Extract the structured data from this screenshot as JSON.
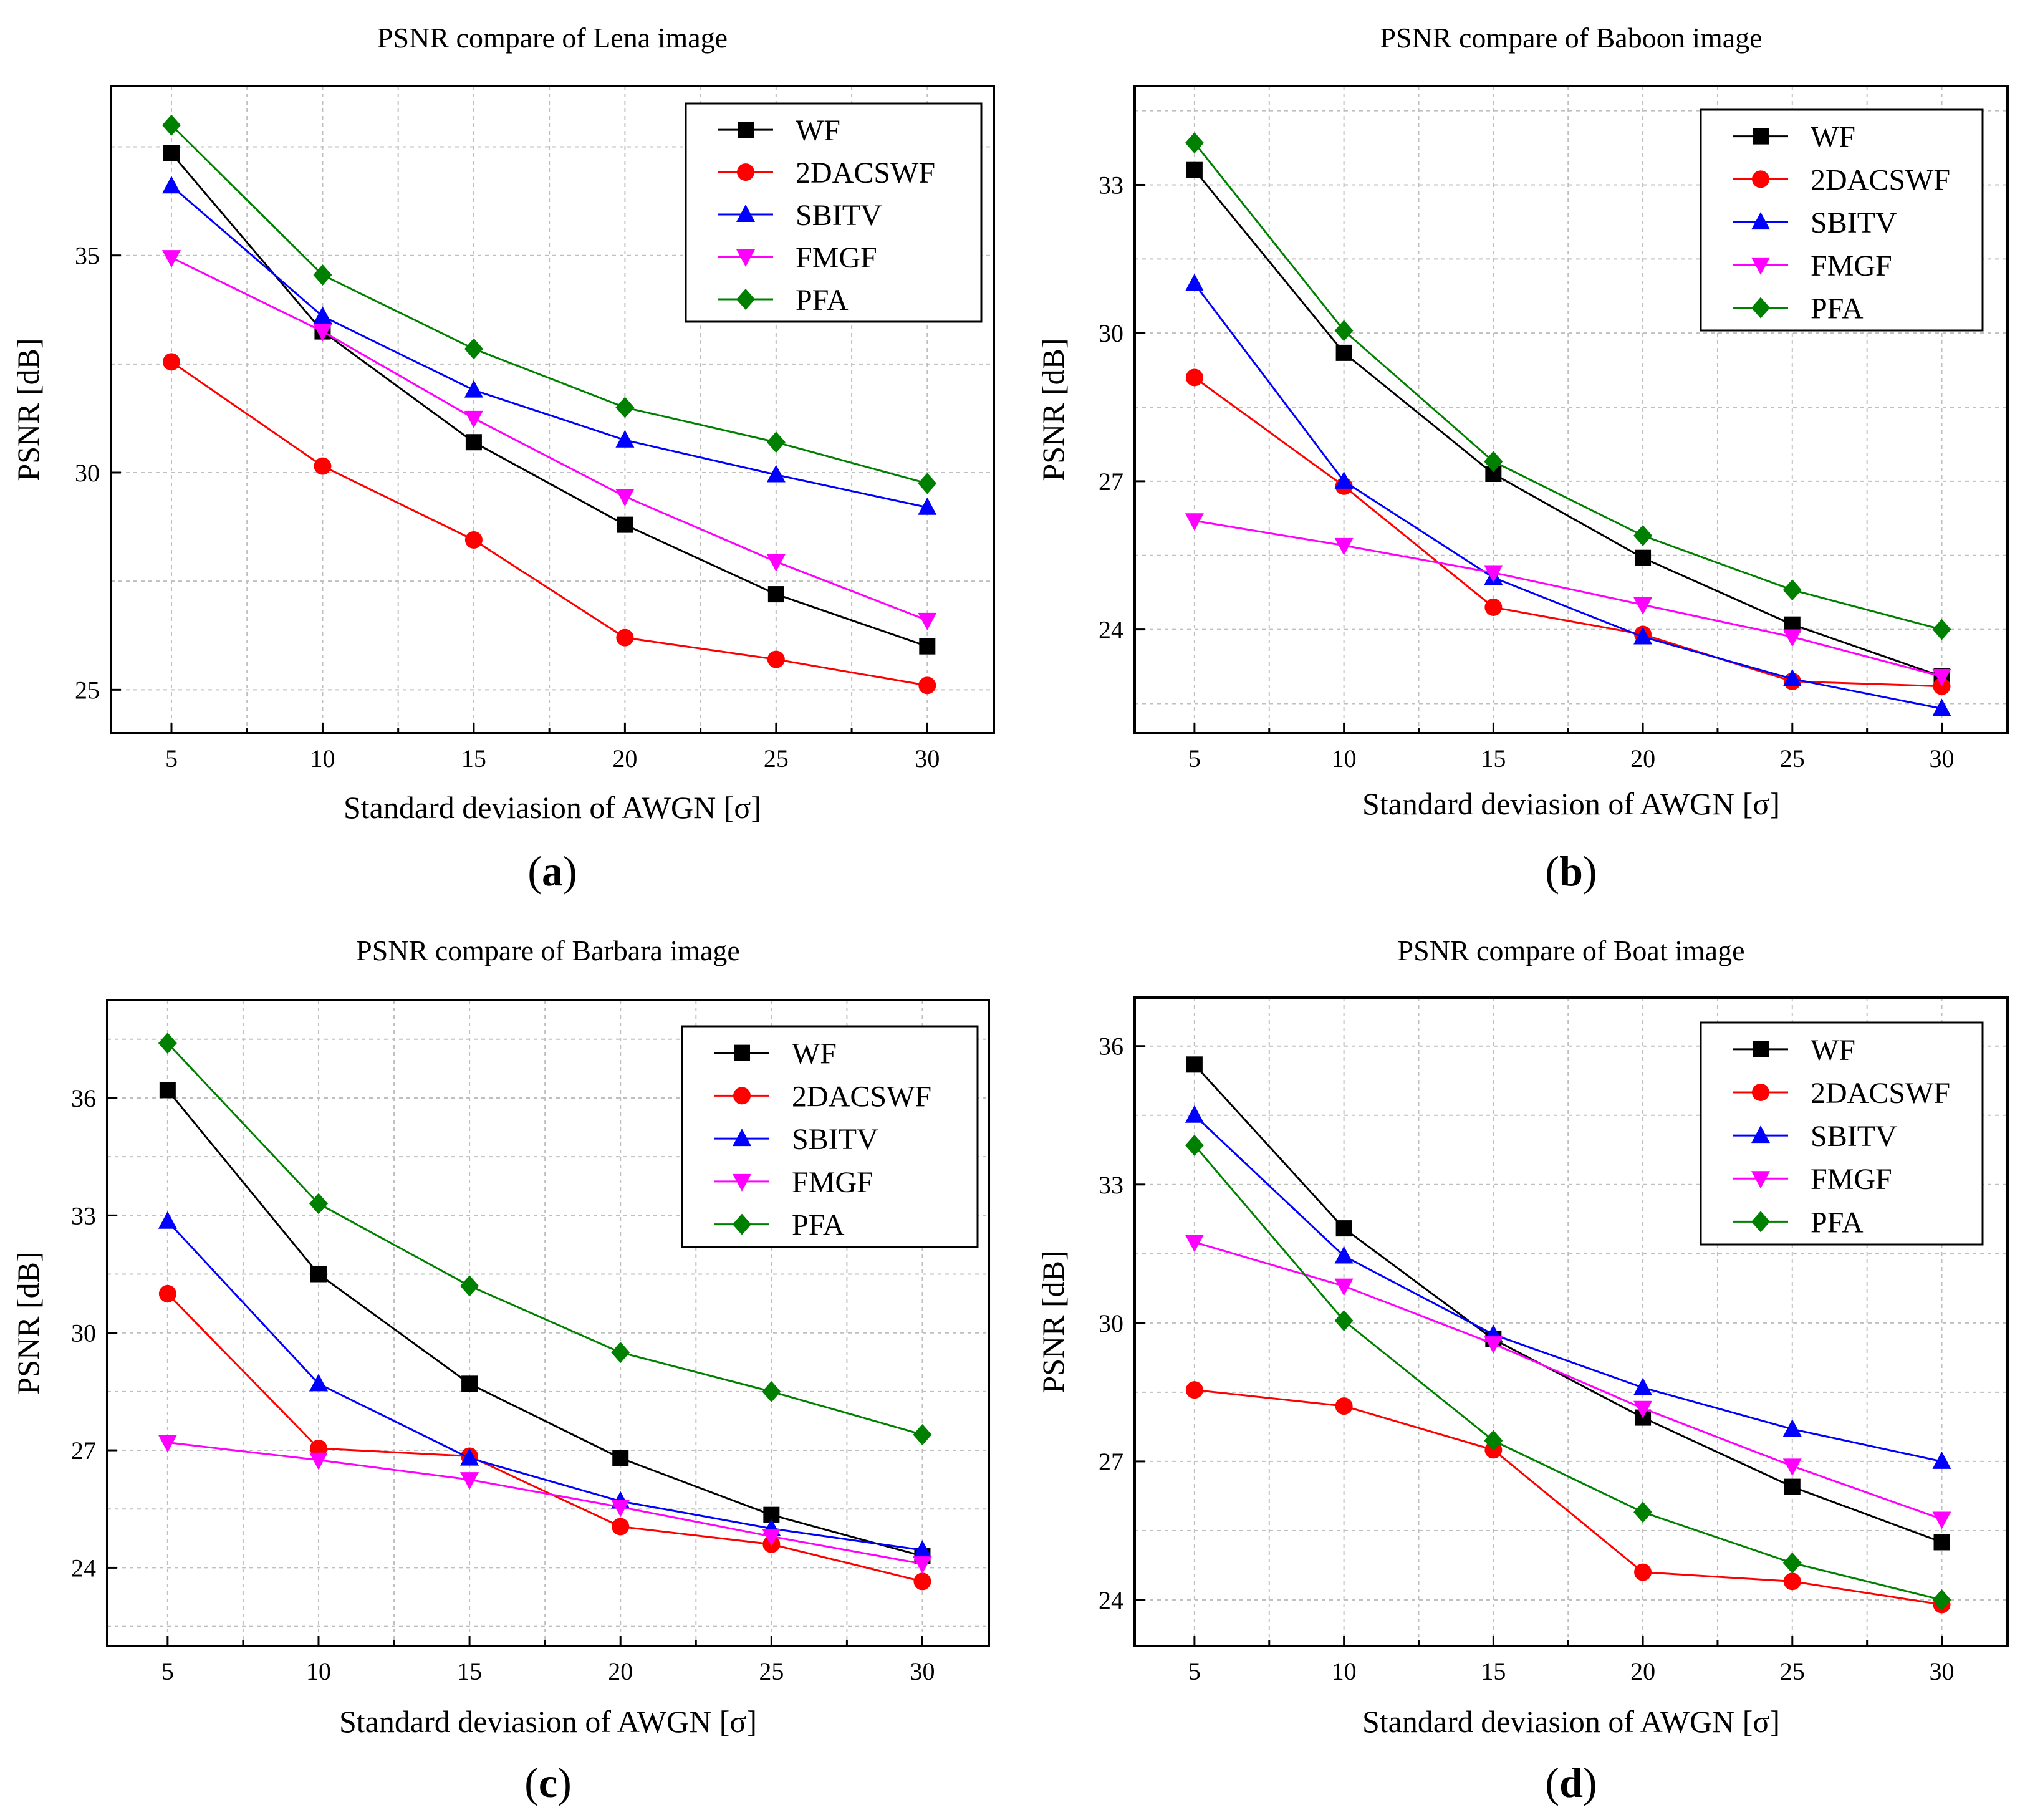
{
  "series_colors": {
    "WF": "#000000",
    "2DACSWF": "#ff0000",
    "SBITV": "#0000ff",
    "FMGF": "#ff00ff",
    "PFA": "#008000"
  },
  "series_markers": {
    "WF": "square",
    "2DACSWF": "circle",
    "SBITV": "triangle-up",
    "FMGF": "triangle-down",
    "PFA": "diamond"
  },
  "chart_data": [
    {
      "panel_label": "a",
      "type": "line",
      "title": "PSNR compare of Lena image",
      "xlabel": "Standard deviasion of AWGN [σ]",
      "ylabel": "PSNR [dB]",
      "x": [
        5,
        10,
        15,
        20,
        25,
        30
      ],
      "xticks": [
        5,
        10,
        15,
        20,
        25,
        30
      ],
      "xlim": [
        3,
        32.2
      ],
      "yticks": [
        25,
        30,
        35
      ],
      "ylim": [
        24,
        38.9
      ],
      "grid": true,
      "legend_position": "top-right",
      "series": [
        {
          "name": "WF",
          "values": [
            37.35,
            33.25,
            30.7,
            28.8,
            27.2,
            26.0
          ]
        },
        {
          "name": "2DACSWF",
          "values": [
            32.55,
            30.15,
            28.45,
            26.2,
            25.7,
            25.1
          ]
        },
        {
          "name": "SBITV",
          "values": [
            36.6,
            33.6,
            31.9,
            30.75,
            29.95,
            29.2
          ]
        },
        {
          "name": "FMGF",
          "values": [
            34.95,
            33.25,
            31.25,
            29.45,
            27.95,
            26.6
          ]
        },
        {
          "name": "PFA",
          "values": [
            38.0,
            34.55,
            32.85,
            31.5,
            30.7,
            29.75
          ]
        }
      ]
    },
    {
      "panel_label": "b",
      "type": "line",
      "title": "PSNR compare of Baboon image",
      "xlabel": "Standard deviasion of AWGN [σ]",
      "ylabel": "PSNR [dB]",
      "x": [
        5,
        10,
        15,
        20,
        25,
        30
      ],
      "xticks": [
        5,
        10,
        15,
        20,
        25,
        30
      ],
      "xlim": [
        3,
        32.2
      ],
      "yticks": [
        24,
        27,
        30,
        33
      ],
      "ylim": [
        21.9,
        35
      ],
      "grid": true,
      "legend_position": "top-right",
      "series": [
        {
          "name": "WF",
          "values": [
            33.3,
            29.6,
            27.15,
            25.45,
            24.1,
            23.05
          ]
        },
        {
          "name": "2DACSWF",
          "values": [
            29.1,
            26.9,
            24.45,
            23.9,
            22.95,
            22.85
          ]
        },
        {
          "name": "SBITV",
          "values": [
            31.0,
            27.0,
            25.05,
            23.85,
            23.0,
            22.4
          ]
        },
        {
          "name": "FMGF",
          "values": [
            26.2,
            25.7,
            25.15,
            24.5,
            23.85,
            23.05
          ]
        },
        {
          "name": "PFA",
          "values": [
            33.85,
            30.05,
            27.4,
            25.9,
            24.8,
            24.0
          ]
        }
      ]
    },
    {
      "panel_label": "c",
      "type": "line",
      "title": "PSNR compare of Barbara image",
      "xlabel": "Standard deviasion of AWGN [σ]",
      "ylabel": "PSNR [dB]",
      "x": [
        5,
        10,
        15,
        20,
        25,
        30
      ],
      "xticks": [
        5,
        10,
        15,
        20,
        25,
        30
      ],
      "xlim": [
        3,
        32.2
      ],
      "yticks": [
        24,
        27,
        30,
        33,
        36
      ],
      "ylim": [
        22,
        38.5
      ],
      "grid": true,
      "legend_position": "top-right",
      "series": [
        {
          "name": "WF",
          "values": [
            36.2,
            31.5,
            28.7,
            26.8,
            25.35,
            24.3
          ]
        },
        {
          "name": "2DACSWF",
          "values": [
            31.0,
            27.05,
            26.85,
            25.05,
            24.6,
            23.65
          ]
        },
        {
          "name": "SBITV",
          "values": [
            32.85,
            28.7,
            26.8,
            25.7,
            25.0,
            24.45
          ]
        },
        {
          "name": "FMGF",
          "values": [
            27.2,
            26.75,
            26.25,
            25.55,
            24.8,
            24.1
          ]
        },
        {
          "name": "PFA",
          "values": [
            37.4,
            33.3,
            31.2,
            29.5,
            28.5,
            27.4
          ]
        }
      ]
    },
    {
      "panel_label": "d",
      "type": "line",
      "title": "PSNR compare of Boat image",
      "xlabel": "Standard deviasion of AWGN [σ]",
      "ylabel": "PSNR [dB]",
      "x": [
        5,
        10,
        15,
        20,
        25,
        30
      ],
      "xticks": [
        5,
        10,
        15,
        20,
        25,
        30
      ],
      "xlim": [
        3,
        32.2
      ],
      "yticks": [
        24,
        27,
        30,
        33,
        36
      ],
      "ylim": [
        23,
        37.05
      ],
      "grid": true,
      "legend_position": "top-right",
      "series": [
        {
          "name": "WF",
          "values": [
            35.6,
            32.05,
            29.65,
            27.95,
            26.45,
            25.25
          ]
        },
        {
          "name": "2DACSWF",
          "values": [
            28.55,
            28.2,
            27.25,
            24.6,
            24.4,
            23.9
          ]
        },
        {
          "name": "SBITV",
          "values": [
            34.5,
            31.45,
            29.75,
            28.6,
            27.7,
            27.0
          ]
        },
        {
          "name": "FMGF",
          "values": [
            31.75,
            30.8,
            29.55,
            28.15,
            26.9,
            25.75
          ]
        },
        {
          "name": "PFA",
          "values": [
            33.85,
            30.05,
            27.45,
            25.9,
            24.8,
            24.0
          ]
        }
      ]
    }
  ]
}
